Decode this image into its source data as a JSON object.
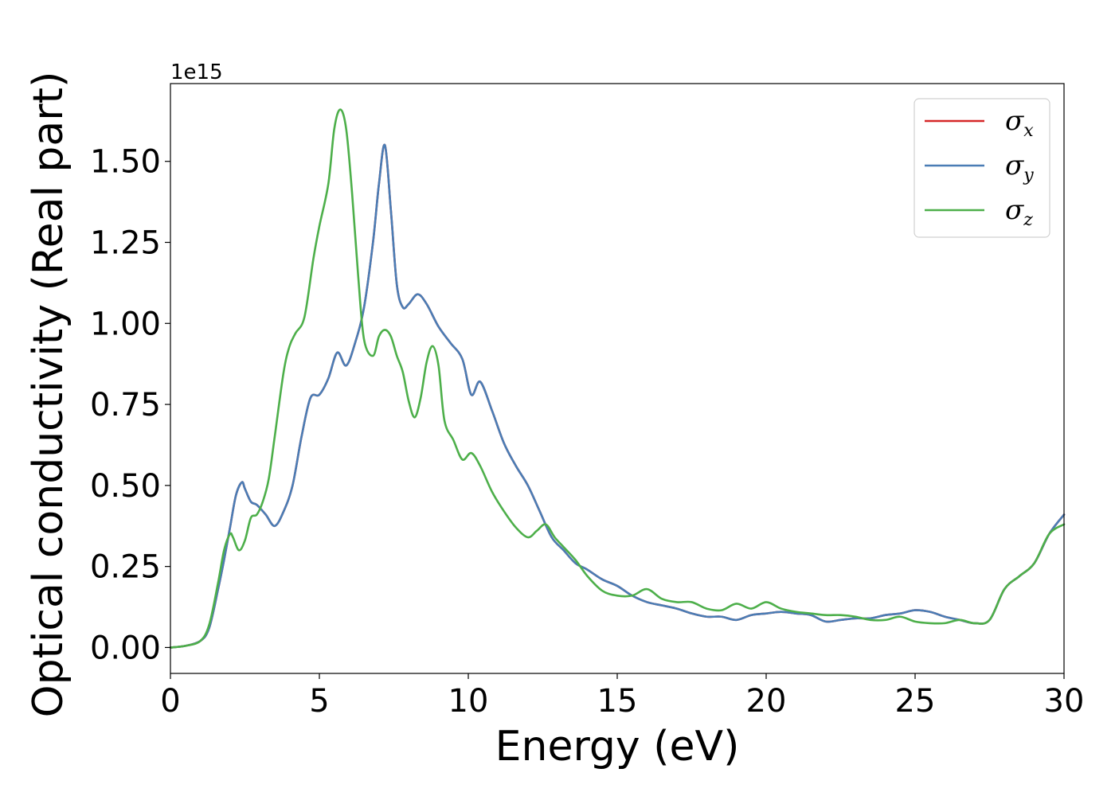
{
  "chart_data": {
    "type": "line",
    "xlabel": "Energy (eV)",
    "ylabel": "Optical conductivity (Real part)",
    "y_offset_label": "1e15",
    "xlim": [
      0,
      30
    ],
    "ylim": [
      -0.08,
      1.74
    ],
    "x_ticks": [
      0,
      5,
      10,
      15,
      20,
      25,
      30
    ],
    "x_tick_labels": [
      "0",
      "5",
      "10",
      "15",
      "20",
      "25",
      "30"
    ],
    "y_ticks": [
      0.0,
      0.25,
      0.5,
      0.75,
      1.0,
      1.25,
      1.5
    ],
    "y_tick_labels": [
      "0.00",
      "0.25",
      "0.50",
      "0.75",
      "1.00",
      "1.25",
      "1.50"
    ],
    "grid": false,
    "legend_position": "top-right",
    "series": [
      {
        "name": "σx",
        "symbol": "σ",
        "subscript": "x",
        "color": "#d62728",
        "x": [
          0,
          0.5,
          1,
          1.3,
          1.6,
          1.8,
          2.0,
          2.2,
          2.4,
          2.5,
          2.7,
          2.9,
          3.2,
          3.5,
          3.8,
          4.1,
          4.4,
          4.7,
          5.0,
          5.3,
          5.6,
          5.9,
          6.2,
          6.5,
          6.8,
          7.0,
          7.2,
          7.4,
          7.6,
          7.8,
          8.0,
          8.3,
          8.6,
          9.0,
          9.4,
          9.8,
          10.1,
          10.4,
          10.8,
          11.2,
          11.6,
          12.0,
          12.4,
          12.8,
          13.2,
          13.6,
          14.0,
          14.5,
          15.0,
          15.5,
          16.0,
          16.5,
          17.0,
          17.5,
          18.0,
          18.5,
          19.0,
          19.5,
          20.0,
          20.5,
          21.0,
          21.5,
          22.0,
          22.5,
          23.0,
          23.5,
          24.0,
          24.5,
          25.0,
          25.5,
          26.0,
          26.5,
          27.0,
          27.5,
          28.0,
          28.5,
          29.0,
          29.5,
          30.0
        ],
        "y": [
          0.0,
          0.005,
          0.02,
          0.06,
          0.18,
          0.27,
          0.37,
          0.47,
          0.51,
          0.49,
          0.45,
          0.44,
          0.41,
          0.375,
          0.42,
          0.5,
          0.65,
          0.77,
          0.78,
          0.83,
          0.91,
          0.87,
          0.94,
          1.05,
          1.25,
          1.43,
          1.55,
          1.35,
          1.12,
          1.05,
          1.06,
          1.09,
          1.06,
          0.99,
          0.94,
          0.89,
          0.78,
          0.82,
          0.73,
          0.63,
          0.56,
          0.5,
          0.42,
          0.34,
          0.3,
          0.26,
          0.24,
          0.21,
          0.19,
          0.16,
          0.14,
          0.13,
          0.12,
          0.105,
          0.095,
          0.095,
          0.085,
          0.1,
          0.105,
          0.11,
          0.105,
          0.1,
          0.08,
          0.085,
          0.09,
          0.09,
          0.1,
          0.105,
          0.115,
          0.11,
          0.095,
          0.085,
          0.075,
          0.085,
          0.18,
          0.22,
          0.26,
          0.35,
          0.41
        ]
      },
      {
        "name": "σy",
        "symbol": "σ",
        "subscript": "y",
        "color": "#4a7db5",
        "x": [
          0,
          0.5,
          1,
          1.3,
          1.6,
          1.8,
          2.0,
          2.2,
          2.4,
          2.5,
          2.7,
          2.9,
          3.2,
          3.5,
          3.8,
          4.1,
          4.4,
          4.7,
          5.0,
          5.3,
          5.6,
          5.9,
          6.2,
          6.5,
          6.8,
          7.0,
          7.2,
          7.4,
          7.6,
          7.8,
          8.0,
          8.3,
          8.6,
          9.0,
          9.4,
          9.8,
          10.1,
          10.4,
          10.8,
          11.2,
          11.6,
          12.0,
          12.4,
          12.8,
          13.2,
          13.6,
          14.0,
          14.5,
          15.0,
          15.5,
          16.0,
          16.5,
          17.0,
          17.5,
          18.0,
          18.5,
          19.0,
          19.5,
          20.0,
          20.5,
          21.0,
          21.5,
          22.0,
          22.5,
          23.0,
          23.5,
          24.0,
          24.5,
          25.0,
          25.5,
          26.0,
          26.5,
          27.0,
          27.5,
          28.0,
          28.5,
          29.0,
          29.5,
          30.0
        ],
        "y": [
          0.0,
          0.005,
          0.02,
          0.06,
          0.18,
          0.27,
          0.37,
          0.47,
          0.51,
          0.49,
          0.45,
          0.44,
          0.41,
          0.375,
          0.42,
          0.5,
          0.65,
          0.77,
          0.78,
          0.83,
          0.91,
          0.87,
          0.94,
          1.05,
          1.25,
          1.43,
          1.55,
          1.35,
          1.12,
          1.05,
          1.06,
          1.09,
          1.06,
          0.99,
          0.94,
          0.89,
          0.78,
          0.82,
          0.73,
          0.63,
          0.56,
          0.5,
          0.42,
          0.34,
          0.3,
          0.26,
          0.24,
          0.21,
          0.19,
          0.16,
          0.14,
          0.13,
          0.12,
          0.105,
          0.095,
          0.095,
          0.085,
          0.1,
          0.105,
          0.11,
          0.105,
          0.1,
          0.08,
          0.085,
          0.09,
          0.09,
          0.1,
          0.105,
          0.115,
          0.11,
          0.095,
          0.085,
          0.075,
          0.085,
          0.18,
          0.22,
          0.26,
          0.35,
          0.41
        ]
      },
      {
        "name": "σz",
        "symbol": "σ",
        "subscript": "z",
        "color": "#4daf4a",
        "x": [
          0,
          0.5,
          1,
          1.3,
          1.6,
          1.8,
          2.0,
          2.1,
          2.3,
          2.5,
          2.7,
          2.9,
          3.1,
          3.3,
          3.5,
          3.8,
          4.0,
          4.2,
          4.5,
          4.8,
          5.0,
          5.3,
          5.5,
          5.7,
          5.9,
          6.1,
          6.3,
          6.5,
          6.8,
          7.0,
          7.2,
          7.4,
          7.6,
          7.8,
          8.0,
          8.2,
          8.4,
          8.6,
          8.8,
          9.0,
          9.2,
          9.5,
          9.8,
          10.1,
          10.4,
          10.8,
          11.2,
          11.6,
          12.0,
          12.3,
          12.6,
          12.9,
          13.2,
          13.6,
          14.0,
          14.5,
          15.0,
          15.5,
          16.0,
          16.5,
          17.0,
          17.5,
          18.0,
          18.5,
          19.0,
          19.5,
          20.0,
          20.5,
          21.0,
          21.5,
          22.0,
          22.5,
          23.0,
          23.5,
          24.0,
          24.5,
          25.0,
          25.5,
          26.0,
          26.5,
          27.0,
          27.5,
          28.0,
          28.5,
          29.0,
          29.5,
          30.0
        ],
        "y": [
          0.0,
          0.005,
          0.02,
          0.07,
          0.2,
          0.3,
          0.35,
          0.34,
          0.3,
          0.33,
          0.4,
          0.41,
          0.45,
          0.52,
          0.65,
          0.85,
          0.93,
          0.97,
          1.02,
          1.2,
          1.3,
          1.43,
          1.6,
          1.66,
          1.6,
          1.4,
          1.15,
          0.95,
          0.9,
          0.96,
          0.98,
          0.96,
          0.9,
          0.85,
          0.76,
          0.71,
          0.77,
          0.88,
          0.93,
          0.87,
          0.7,
          0.64,
          0.58,
          0.6,
          0.56,
          0.48,
          0.42,
          0.37,
          0.34,
          0.36,
          0.38,
          0.34,
          0.31,
          0.27,
          0.22,
          0.175,
          0.16,
          0.16,
          0.18,
          0.15,
          0.14,
          0.14,
          0.12,
          0.115,
          0.135,
          0.12,
          0.14,
          0.12,
          0.11,
          0.105,
          0.1,
          0.1,
          0.095,
          0.085,
          0.085,
          0.095,
          0.08,
          0.075,
          0.075,
          0.085,
          0.075,
          0.085,
          0.18,
          0.22,
          0.26,
          0.35,
          0.38
        ]
      }
    ]
  }
}
